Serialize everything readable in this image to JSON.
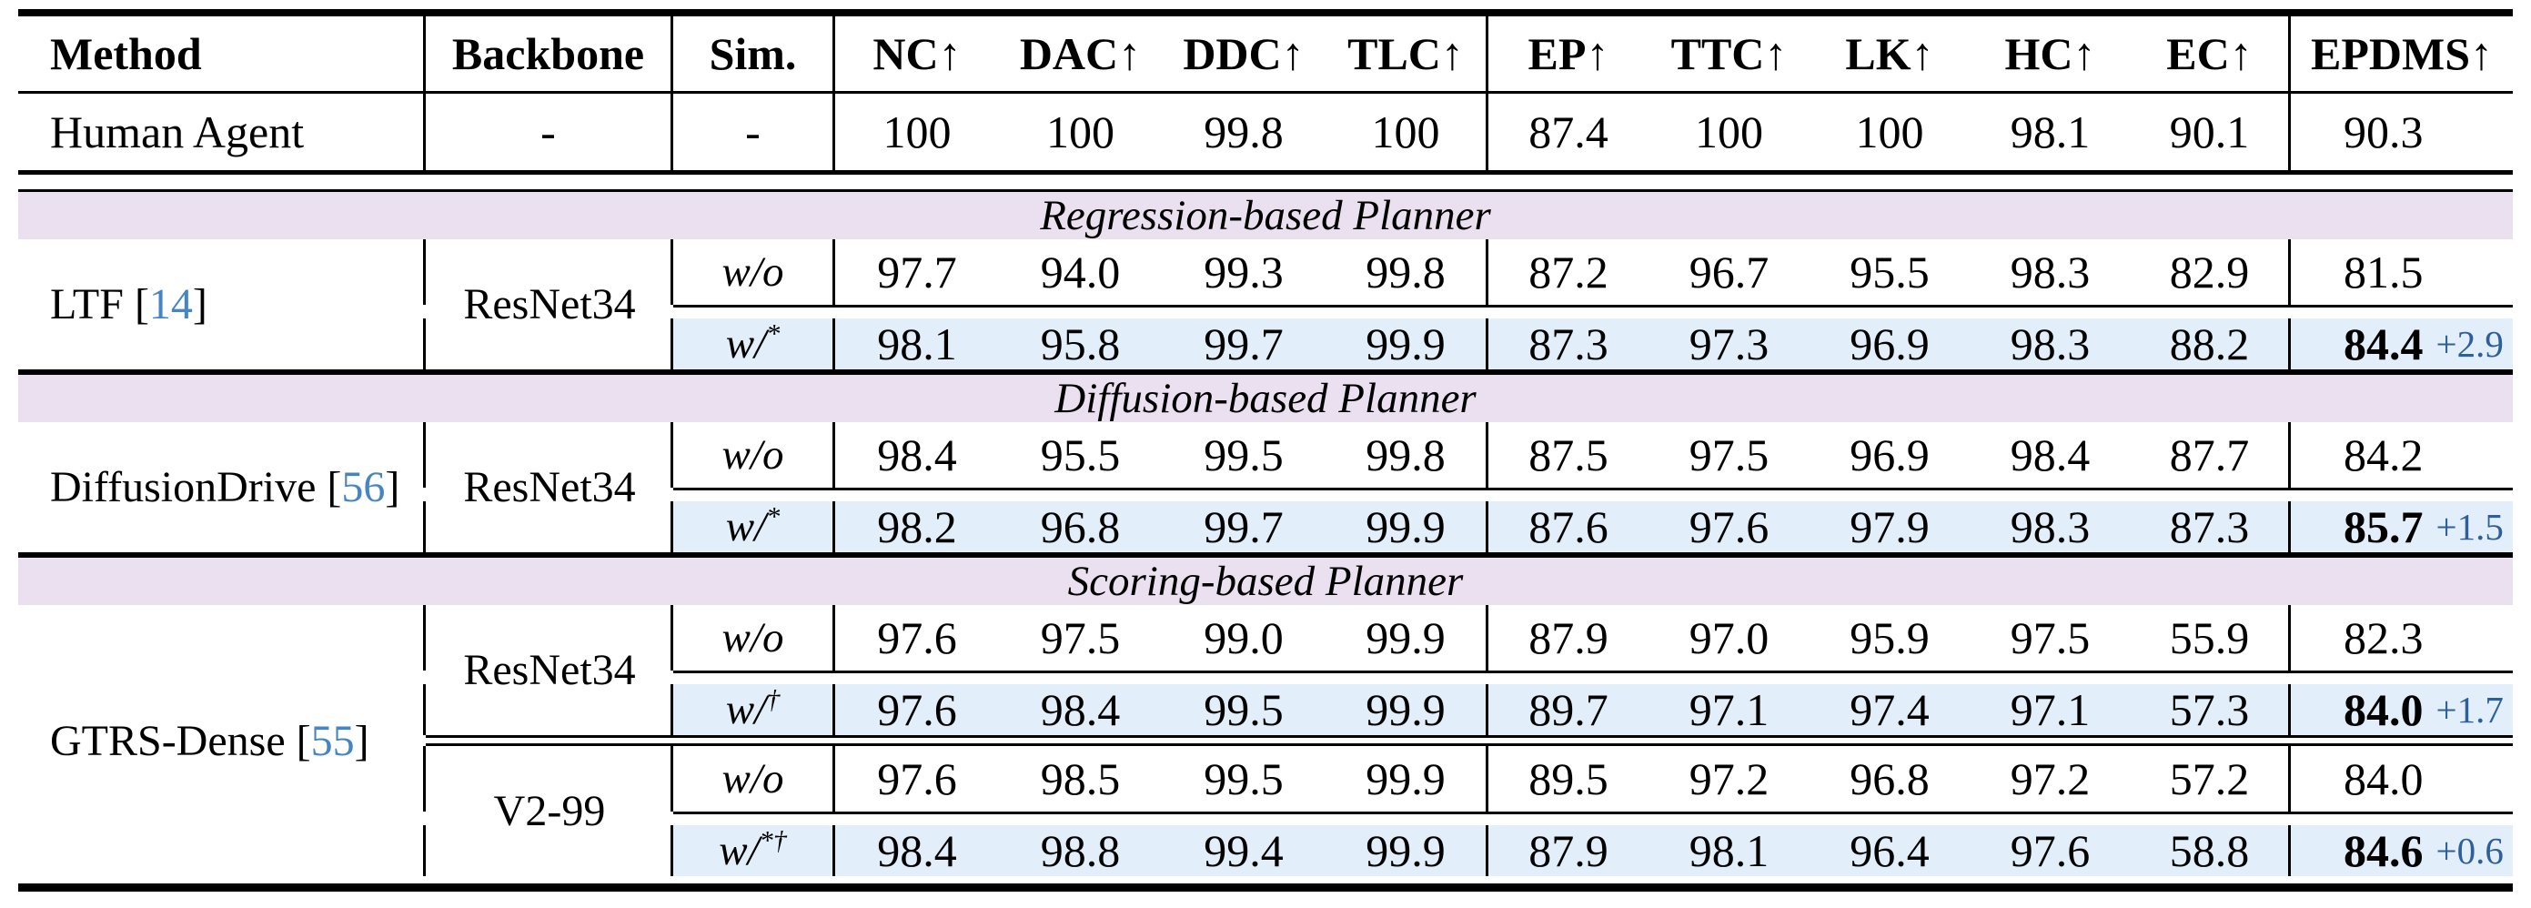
{
  "colors": {
    "section_band": "#EBE0F0",
    "highlight_row": "#E2EEFA",
    "delta_text": "#2D5F9A",
    "citation_text": "#4685C4",
    "rule": "#000000"
  },
  "table": {
    "columns": [
      "Method",
      "Backbone",
      "Sim.",
      "NC↑",
      "DAC↑",
      "DDC↑",
      "TLC↑",
      "EP↑",
      "TTC↑",
      "LK↑",
      "HC↑",
      "EC↑",
      "EPDMS↑"
    ],
    "human_row": {
      "method": "Human Agent",
      "backbone": "-",
      "sim": "-",
      "metrics": [
        "100",
        "100",
        "99.8",
        "100",
        "87.4",
        "100",
        "100",
        "98.1",
        "90.1"
      ],
      "epdms": "90.3"
    },
    "sections": [
      {
        "title": "Regression-based Planner",
        "method": {
          "name": "LTF",
          "cite": "14"
        },
        "blocks": [
          {
            "backbone": "ResNet34",
            "rows": [
              {
                "sim": "w/o",
                "sup": "",
                "metrics": [
                  "97.7",
                  "94.0",
                  "99.3",
                  "99.8",
                  "87.2",
                  "96.7",
                  "95.5",
                  "98.3",
                  "82.9"
                ],
                "epdms": "81.5",
                "delta": "",
                "highlight": false
              },
              {
                "sim": "w/",
                "sup": "*",
                "metrics": [
                  "98.1",
                  "95.8",
                  "99.7",
                  "99.9",
                  "87.3",
                  "97.3",
                  "96.9",
                  "98.3",
                  "88.2"
                ],
                "epdms": "84.4",
                "delta": "+2.9",
                "highlight": true
              }
            ]
          }
        ]
      },
      {
        "title": "Diffusion-based Planner",
        "method": {
          "name": "DiffusionDrive",
          "cite": "56"
        },
        "blocks": [
          {
            "backbone": "ResNet34",
            "rows": [
              {
                "sim": "w/o",
                "sup": "",
                "metrics": [
                  "98.4",
                  "95.5",
                  "99.5",
                  "99.8",
                  "87.5",
                  "97.5",
                  "96.9",
                  "98.4",
                  "87.7"
                ],
                "epdms": "84.2",
                "delta": "",
                "highlight": false
              },
              {
                "sim": "w/",
                "sup": "*",
                "metrics": [
                  "98.2",
                  "96.8",
                  "99.7",
                  "99.9",
                  "87.6",
                  "97.6",
                  "97.9",
                  "98.3",
                  "87.3"
                ],
                "epdms": "85.7",
                "delta": "+1.5",
                "highlight": true
              }
            ]
          }
        ]
      },
      {
        "title": "Scoring-based Planner",
        "method": {
          "name": "GTRS-Dense",
          "cite": "55"
        },
        "blocks": [
          {
            "backbone": "ResNet34",
            "rows": [
              {
                "sim": "w/o",
                "sup": "",
                "metrics": [
                  "97.6",
                  "97.5",
                  "99.0",
                  "99.9",
                  "87.9",
                  "97.0",
                  "95.9",
                  "97.5",
                  "55.9"
                ],
                "epdms": "82.3",
                "delta": "",
                "highlight": false
              },
              {
                "sim": "w/",
                "sup": "†",
                "metrics": [
                  "97.6",
                  "98.4",
                  "99.5",
                  "99.9",
                  "89.7",
                  "97.1",
                  "97.4",
                  "97.1",
                  "57.3"
                ],
                "epdms": "84.0",
                "delta": "+1.7",
                "highlight": true
              }
            ]
          },
          {
            "backbone": "V2-99",
            "rows": [
              {
                "sim": "w/o",
                "sup": "",
                "metrics": [
                  "97.6",
                  "98.5",
                  "99.5",
                  "99.9",
                  "89.5",
                  "97.2",
                  "96.8",
                  "97.2",
                  "57.2"
                ],
                "epdms": "84.0",
                "delta": "",
                "highlight": false
              },
              {
                "sim": "w/",
                "sup": "*†",
                "metrics": [
                  "98.4",
                  "98.8",
                  "99.4",
                  "99.9",
                  "87.9",
                  "98.1",
                  "96.4",
                  "97.6",
                  "58.8"
                ],
                "epdms": "84.6",
                "delta": "+0.6",
                "highlight": true
              }
            ]
          }
        ]
      }
    ]
  }
}
